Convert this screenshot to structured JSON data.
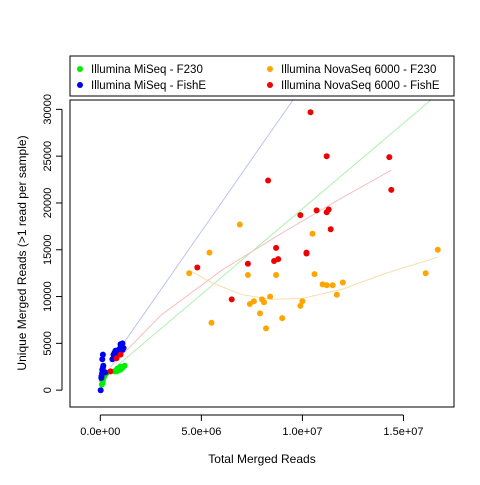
{
  "chart_data": {
    "type": "scatter",
    "title": "",
    "xlabel": "Total Merged Reads",
    "ylabel": "Unique Merged Reads (>1 read per sample)",
    "xlim": [
      -1500000,
      17500000
    ],
    "ylim": [
      -1800,
      31000
    ],
    "x_ticks": [
      0,
      5000000,
      10000000,
      15000000
    ],
    "x_tick_labels": [
      "0.0e+00",
      "5.0e+06",
      "1.0e+07",
      "1.5e+07"
    ],
    "y_ticks": [
      0,
      5000,
      10000,
      15000,
      20000,
      25000,
      30000
    ],
    "y_tick_labels": [
      "0",
      "5000",
      "10000",
      "15000",
      "20000",
      "25000",
      "30000"
    ],
    "grid": false,
    "legend_position": "top",
    "series": [
      {
        "name": "Illumina MiSeq - F230",
        "color": "#00ee00",
        "points": [
          [
            80000,
            600
          ],
          [
            120000,
            800
          ],
          [
            100000,
            1000
          ],
          [
            150000,
            1200
          ],
          [
            200000,
            1500
          ],
          [
            300000,
            1800
          ],
          [
            700000,
            2000
          ],
          [
            800000,
            2000
          ],
          [
            900000,
            2100
          ],
          [
            1000000,
            2200
          ],
          [
            1100000,
            2400
          ],
          [
            1200000,
            2600
          ],
          [
            1000000,
            2500
          ],
          [
            850000,
            2300
          ]
        ]
      },
      {
        "name": "Illumina MiSeq - FishE",
        "color": "#0000ee",
        "points": [
          [
            20000,
            0
          ],
          [
            60000,
            1500
          ],
          [
            90000,
            1800
          ],
          [
            100000,
            2200
          ],
          [
            130000,
            2400
          ],
          [
            150000,
            2600
          ],
          [
            100000,
            3300
          ],
          [
            130000,
            3800
          ],
          [
            50000,
            1300
          ],
          [
            250000,
            1900
          ],
          [
            600000,
            3300
          ],
          [
            650000,
            3800
          ],
          [
            700000,
            4000
          ],
          [
            750000,
            4200
          ],
          [
            800000,
            4000
          ],
          [
            900000,
            4300
          ],
          [
            1000000,
            4600
          ],
          [
            1000000,
            4900
          ],
          [
            1100000,
            5000
          ],
          [
            1150000,
            4500
          ],
          [
            1100000,
            4300
          ]
        ]
      },
      {
        "name": "Illumina NovaSeq 6000 - F230",
        "color": "#ffa500",
        "points": [
          [
            4400000,
            12500
          ],
          [
            5400000,
            14700
          ],
          [
            5500000,
            7200
          ],
          [
            6900000,
            17700
          ],
          [
            7300000,
            12300
          ],
          [
            7400000,
            9200
          ],
          [
            7600000,
            9500
          ],
          [
            7900000,
            8200
          ],
          [
            8000000,
            9700
          ],
          [
            8100000,
            9400
          ],
          [
            8200000,
            6600
          ],
          [
            8400000,
            10000
          ],
          [
            8700000,
            12300
          ],
          [
            9000000,
            7700
          ],
          [
            9900000,
            9000
          ],
          [
            10000000,
            9500
          ],
          [
            10500000,
            16700
          ],
          [
            10600000,
            12400
          ],
          [
            11000000,
            11300
          ],
          [
            11200000,
            11200
          ],
          [
            11500000,
            11200
          ],
          [
            11700000,
            10200
          ],
          [
            12000000,
            11500
          ],
          [
            16100000,
            12500
          ],
          [
            16700000,
            15000
          ]
        ]
      },
      {
        "name": "Illumina NovaSeq 6000 - FishE",
        "color": "#ee0000",
        "points": [
          [
            500000,
            2000
          ],
          [
            800000,
            3400
          ],
          [
            1000000,
            3800
          ],
          [
            4800000,
            13100
          ],
          [
            6500000,
            9700
          ],
          [
            7300000,
            13500
          ],
          [
            8300000,
            22400
          ],
          [
            8600000,
            13800
          ],
          [
            8700000,
            15200
          ],
          [
            8800000,
            14000
          ],
          [
            9900000,
            18700
          ],
          [
            10200000,
            14700
          ],
          [
            10200000,
            14600
          ],
          [
            10400000,
            29700
          ],
          [
            10700000,
            19200
          ],
          [
            11200000,
            25000
          ],
          [
            11200000,
            19000
          ],
          [
            11300000,
            19300
          ],
          [
            11400000,
            17200
          ],
          [
            14300000,
            24900
          ],
          [
            14400000,
            21400
          ]
        ]
      }
    ],
    "smooth_lines": [
      {
        "series": "Illumina MiSeq - F230",
        "color": "#b0f0b0",
        "points": [
          [
            500000,
            2000
          ],
          [
            18000000,
            34000
          ]
        ]
      },
      {
        "series": "Illumina MiSeq - FishE",
        "color": "#c0c0f8",
        "points": [
          [
            500000,
            3000
          ],
          [
            10500000,
            34000
          ]
        ]
      },
      {
        "series": "Illumina NovaSeq 6000 - F230",
        "color": "#f8ddb0",
        "points": [
          [
            4500000,
            12700
          ],
          [
            5500000,
            11500
          ],
          [
            7000000,
            10200
          ],
          [
            8500000,
            9700
          ],
          [
            10000000,
            9800
          ],
          [
            12000000,
            10800
          ],
          [
            14000000,
            12400
          ],
          [
            16700000,
            14200
          ]
        ]
      },
      {
        "series": "Illumina NovaSeq 6000 - FishE",
        "color": "#f4c0c0",
        "points": [
          [
            500000,
            2500
          ],
          [
            3000000,
            8000
          ],
          [
            6000000,
            12800
          ],
          [
            9000000,
            16800
          ],
          [
            12000000,
            20600
          ],
          [
            14400000,
            23500
          ]
        ]
      }
    ]
  }
}
